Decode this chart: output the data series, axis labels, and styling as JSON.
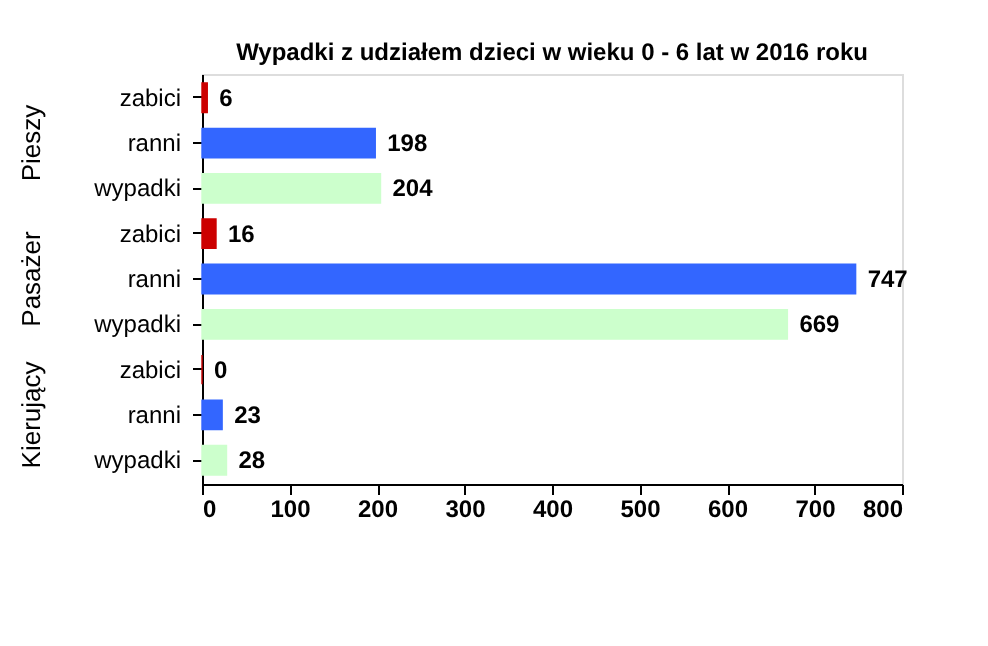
{
  "chart_data": {
    "type": "bar",
    "orientation": "horizontal",
    "title": "Wypadki z udziałem dzieci w wieku 0 - 6 lat w 2016 roku",
    "categories": [
      "zabici",
      "ranni",
      "wypadki",
      "zabici",
      "ranni",
      "wypadki",
      "zabici",
      "ranni",
      "wypadki"
    ],
    "values": [
      6,
      198,
      204,
      16,
      747,
      669,
      0,
      23,
      28
    ],
    "colors": [
      "#cc0000",
      "#3366ff",
      "#ccffcc",
      "#cc0000",
      "#3366ff",
      "#ccffcc",
      "#cc0000",
      "#3366ff",
      "#ccffcc"
    ],
    "xlim": [
      0,
      800
    ],
    "xticks": [
      0,
      100,
      200,
      300,
      400,
      500,
      600,
      700,
      800
    ],
    "data_labels": true,
    "grid": false,
    "annotations": [
      "Pieszy",
      "Pasażer",
      "Kierujący"
    ]
  }
}
